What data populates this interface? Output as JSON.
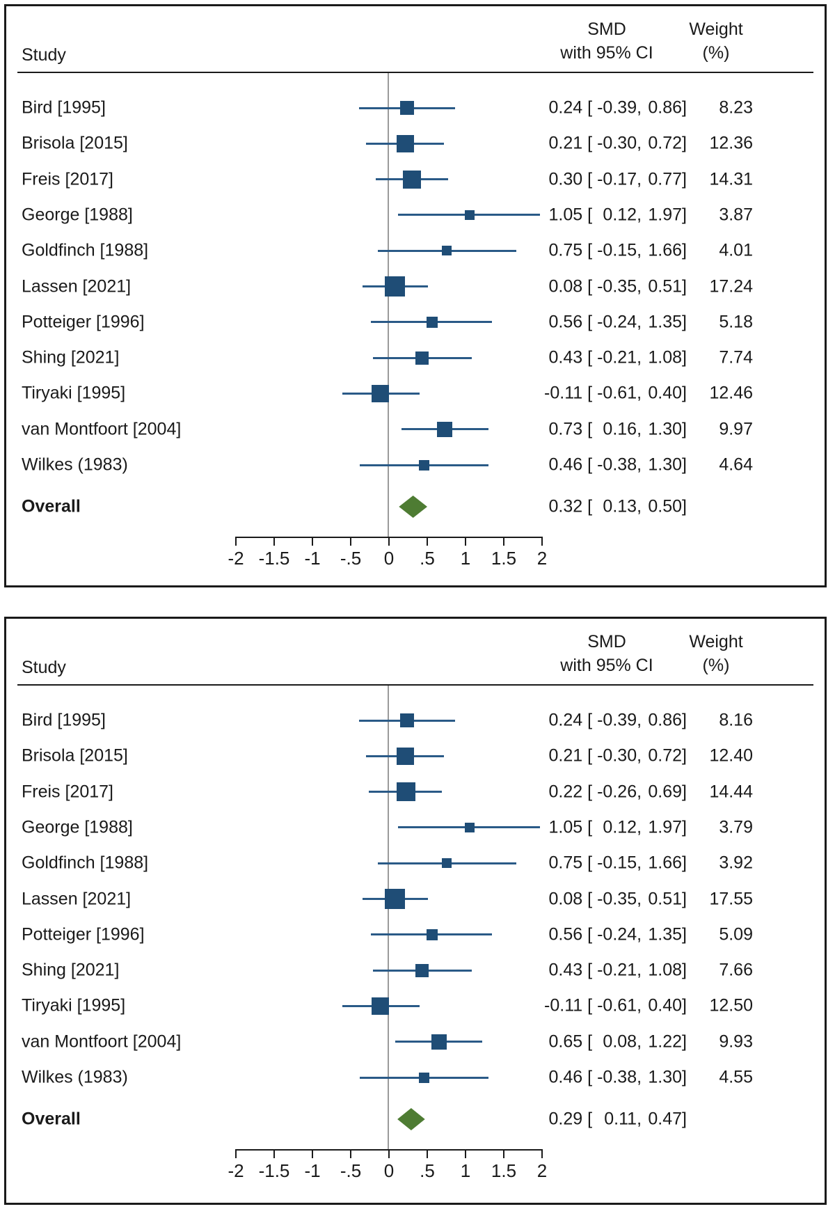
{
  "header": {
    "study": "Study",
    "smd_line1": "SMD",
    "smd_line2": "with 95% CI",
    "weight_line1": "Weight",
    "weight_line2": "(%)"
  },
  "colors": {
    "marker_navy": "#1f4d76",
    "ci_line_navy": "#2a5a87",
    "diamond_green": "#4e7c33",
    "reference_line_gray": "#9a9a9a",
    "frame_black": "#1a1a1a"
  },
  "chart_data": [
    {
      "type": "table",
      "plot_style": "forest",
      "columns": [
        "Study",
        "SMD with 95% CI",
        "Weight (%)"
      ],
      "xlim": [
        -2,
        2
      ],
      "x_ticks": [
        "-2",
        "-1.5",
        "-1",
        "-.5",
        "0",
        ".5",
        "1",
        "1.5",
        "2"
      ],
      "grid": false,
      "studies": [
        {
          "name": "Bird [1995]",
          "est": "0.24",
          "lo": "-0.39",
          "hi": "0.86",
          "weight": "8.23"
        },
        {
          "name": "Brisola [2015]",
          "est": "0.21",
          "lo": "-0.30",
          "hi": "0.72",
          "weight": "12.36"
        },
        {
          "name": "Freis [2017]",
          "est": "0.30",
          "lo": "-0.17",
          "hi": "0.77",
          "weight": "14.31"
        },
        {
          "name": "George [1988]",
          "est": "1.05",
          "lo": "0.12",
          "hi": "1.97",
          "weight": "3.87"
        },
        {
          "name": "Goldfinch [1988]",
          "est": "0.75",
          "lo": "-0.15",
          "hi": "1.66",
          "weight": "4.01"
        },
        {
          "name": "Lassen [2021]",
          "est": "0.08",
          "lo": "-0.35",
          "hi": "0.51",
          "weight": "17.24"
        },
        {
          "name": "Potteiger [1996]",
          "est": "0.56",
          "lo": "-0.24",
          "hi": "1.35",
          "weight": "5.18"
        },
        {
          "name": "Shing [2021]",
          "est": "0.43",
          "lo": "-0.21",
          "hi": "1.08",
          "weight": "7.74"
        },
        {
          "name": "Tiryaki [1995]",
          "est": "-0.11",
          "lo": "-0.61",
          "hi": "0.40",
          "weight": "12.46"
        },
        {
          "name": "van Montfoort [2004]",
          "est": "0.73",
          "lo": "0.16",
          "hi": "1.30",
          "weight": "9.97"
        },
        {
          "name": "Wilkes (1983)",
          "est": "0.46",
          "lo": "-0.38",
          "hi": "1.30",
          "weight": "4.64"
        }
      ],
      "overall": {
        "label": "Overall",
        "est": "0.32",
        "lo": "0.13",
        "hi": "0.50"
      }
    },
    {
      "type": "table",
      "plot_style": "forest",
      "columns": [
        "Study",
        "SMD with 95% CI",
        "Weight (%)"
      ],
      "xlim": [
        -2,
        2
      ],
      "x_ticks": [
        "-2",
        "-1.5",
        "-1",
        "-.5",
        "0",
        ".5",
        "1",
        "1.5",
        "2"
      ],
      "grid": false,
      "studies": [
        {
          "name": "Bird [1995]",
          "est": "0.24",
          "lo": "-0.39",
          "hi": "0.86",
          "weight": "8.16"
        },
        {
          "name": "Brisola [2015]",
          "est": "0.21",
          "lo": "-0.30",
          "hi": "0.72",
          "weight": "12.40"
        },
        {
          "name": "Freis [2017]",
          "est": "0.22",
          "lo": "-0.26",
          "hi": "0.69",
          "weight": "14.44"
        },
        {
          "name": "George [1988]",
          "est": "1.05",
          "lo": "0.12",
          "hi": "1.97",
          "weight": "3.79"
        },
        {
          "name": "Goldfinch [1988]",
          "est": "0.75",
          "lo": "-0.15",
          "hi": "1.66",
          "weight": "3.92"
        },
        {
          "name": "Lassen [2021]",
          "est": "0.08",
          "lo": "-0.35",
          "hi": "0.51",
          "weight": "17.55"
        },
        {
          "name": "Potteiger [1996]",
          "est": "0.56",
          "lo": "-0.24",
          "hi": "1.35",
          "weight": "5.09"
        },
        {
          "name": "Shing [2021]",
          "est": "0.43",
          "lo": "-0.21",
          "hi": "1.08",
          "weight": "7.66"
        },
        {
          "name": "Tiryaki [1995]",
          "est": "-0.11",
          "lo": "-0.61",
          "hi": "0.40",
          "weight": "12.50"
        },
        {
          "name": "van Montfoort [2004]",
          "est": "0.65",
          "lo": "0.08",
          "hi": "1.22",
          "weight": "9.93"
        },
        {
          "name": "Wilkes (1983)",
          "est": "0.46",
          "lo": "-0.38",
          "hi": "1.30",
          "weight": "4.55"
        }
      ],
      "overall": {
        "label": "Overall",
        "est": "0.29",
        "lo": "0.11",
        "hi": "0.47"
      }
    }
  ]
}
